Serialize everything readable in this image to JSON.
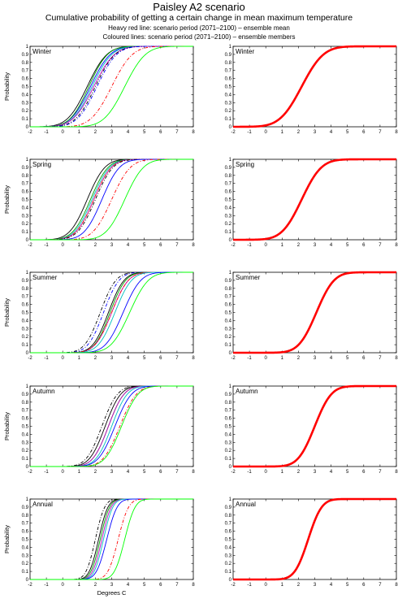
{
  "titles": {
    "main": "Paisley A2 scenario",
    "sub": "Cumulative probability of getting a certain change in mean maximum temperature",
    "legend1": "Heavy red line: scenario period (2071–2100) – ensemble mean",
    "legend2": "Coloured lines: scenario period (2071–2100) – ensemble members"
  },
  "colors": {
    "mean": "#ff0000",
    "axis": "#000000"
  },
  "chart_data": [
    {
      "type": "line",
      "panel": "Winter",
      "column": "members",
      "ylabel": "Probability",
      "xlabel": "",
      "xlim": [
        -2,
        8
      ],
      "ylim": [
        0,
        1
      ],
      "series": [
        {
          "color": "#000000",
          "style": "solid",
          "median": 1.5,
          "spread": 0.95
        },
        {
          "color": "#0000ff",
          "style": "solid",
          "median": 1.7,
          "spread": 0.95
        },
        {
          "color": "#00a000",
          "style": "solid",
          "median": 1.6,
          "spread": 0.9
        },
        {
          "color": "#00c0c0",
          "style": "solid",
          "median": 1.8,
          "spread": 0.95
        },
        {
          "color": "#c000c0",
          "style": "solid",
          "median": 1.9,
          "spread": 1.0
        },
        {
          "color": "#000000",
          "style": "dashdot",
          "median": 2.0,
          "spread": 0.95
        },
        {
          "color": "#0000ff",
          "style": "dashdot",
          "median": 2.1,
          "spread": 0.95
        },
        {
          "color": "#ff0000",
          "style": "dashdot",
          "median": 3.0,
          "spread": 1.0
        },
        {
          "color": "#00ff00",
          "style": "solid",
          "median": 3.8,
          "spread": 1.0
        }
      ]
    },
    {
      "type": "line",
      "panel": "Winter",
      "column": "mean",
      "xlabel": "",
      "xlim": [
        -2,
        8
      ],
      "ylim": [
        0,
        1
      ],
      "series": [
        {
          "color": "#ff0000",
          "style": "heavy",
          "median": 2.2,
          "spread": 1.05
        }
      ]
    },
    {
      "type": "line",
      "panel": "Spring",
      "column": "members",
      "ylabel": "Probability",
      "xlabel": "",
      "xlim": [
        -2,
        8
      ],
      "ylim": [
        0,
        1
      ],
      "series": [
        {
          "color": "#000000",
          "style": "solid",
          "median": 1.5,
          "spread": 0.85
        },
        {
          "color": "#00a000",
          "style": "solid",
          "median": 1.7,
          "spread": 0.85
        },
        {
          "color": "#00c0c0",
          "style": "solid",
          "median": 1.8,
          "spread": 0.85
        },
        {
          "color": "#c000c0",
          "style": "solid",
          "median": 1.9,
          "spread": 0.85
        },
        {
          "color": "#ff0000",
          "style": "dashdot",
          "median": 1.9,
          "spread": 0.85
        },
        {
          "color": "#000000",
          "style": "dashdot",
          "median": 2.0,
          "spread": 0.85
        },
        {
          "color": "#0000ff",
          "style": "solid",
          "median": 2.4,
          "spread": 0.85
        },
        {
          "color": "#ff0000",
          "style": "dashdot",
          "median": 3.0,
          "spread": 0.9
        },
        {
          "color": "#00ff00",
          "style": "solid",
          "median": 3.8,
          "spread": 0.9
        }
      ]
    },
    {
      "type": "line",
      "panel": "Spring",
      "column": "mean",
      "xlabel": "",
      "xlim": [
        -2,
        8
      ],
      "ylim": [
        0,
        1
      ],
      "series": [
        {
          "color": "#ff0000",
          "style": "heavy",
          "median": 2.2,
          "spread": 0.95
        }
      ]
    },
    {
      "type": "line",
      "panel": "Summer",
      "column": "members",
      "ylabel": "Probability",
      "xlabel": "",
      "xlim": [
        -2,
        8
      ],
      "ylim": [
        0,
        1
      ],
      "series": [
        {
          "color": "#000000",
          "style": "dashdot",
          "median": 2.3,
          "spread": 0.75
        },
        {
          "color": "#0000ff",
          "style": "dashdot",
          "median": 2.5,
          "spread": 0.75
        },
        {
          "color": "#000000",
          "style": "solid",
          "median": 2.8,
          "spread": 0.75
        },
        {
          "color": "#00a000",
          "style": "solid",
          "median": 2.9,
          "spread": 0.75
        },
        {
          "color": "#c000c0",
          "style": "solid",
          "median": 3.0,
          "spread": 0.8
        },
        {
          "color": "#ff0000",
          "style": "dashdot",
          "median": 3.0,
          "spread": 0.8
        },
        {
          "color": "#00c0c0",
          "style": "solid",
          "median": 3.2,
          "spread": 0.8
        },
        {
          "color": "#0000ff",
          "style": "solid",
          "median": 3.7,
          "spread": 0.85
        },
        {
          "color": "#00ff00",
          "style": "solid",
          "median": 4.1,
          "spread": 0.9
        }
      ]
    },
    {
      "type": "line",
      "panel": "Summer",
      "column": "mean",
      "xlabel": "",
      "xlim": [
        -2,
        8
      ],
      "ylim": [
        0,
        1
      ],
      "series": [
        {
          "color": "#ff0000",
          "style": "heavy",
          "median": 3.1,
          "spread": 0.85
        }
      ]
    },
    {
      "type": "line",
      "panel": "Autumn",
      "column": "members",
      "ylabel": "Probability",
      "xlabel": "",
      "xlim": [
        -2,
        8
      ],
      "ylim": [
        0,
        1
      ],
      "series": [
        {
          "color": "#000000",
          "style": "dashdot",
          "median": 2.4,
          "spread": 0.75
        },
        {
          "color": "#000000",
          "style": "solid",
          "median": 2.6,
          "spread": 0.75
        },
        {
          "color": "#00a000",
          "style": "solid",
          "median": 2.8,
          "spread": 0.75
        },
        {
          "color": "#c000c0",
          "style": "solid",
          "median": 2.8,
          "spread": 0.75
        },
        {
          "color": "#00c0c0",
          "style": "solid",
          "median": 3.0,
          "spread": 0.75
        },
        {
          "color": "#0000ff",
          "style": "solid",
          "median": 3.2,
          "spread": 0.8
        },
        {
          "color": "#ff0000",
          "style": "dashdot",
          "median": 3.5,
          "spread": 0.8
        },
        {
          "color": "#00ff00",
          "style": "solid",
          "median": 3.6,
          "spread": 0.8
        }
      ]
    },
    {
      "type": "line",
      "panel": "Autumn",
      "column": "mean",
      "xlabel": "",
      "xlim": [
        -2,
        8
      ],
      "ylim": [
        0,
        1
      ],
      "series": [
        {
          "color": "#ff0000",
          "style": "heavy",
          "median": 3.0,
          "spread": 0.8
        }
      ]
    },
    {
      "type": "line",
      "panel": "Annual",
      "column": "members",
      "ylabel": "Probability",
      "xlabel": "Degrees C",
      "xlim": [
        -2,
        8
      ],
      "ylim": [
        0,
        1
      ],
      "series": [
        {
          "color": "#000000",
          "style": "dashdot",
          "median": 2.0,
          "spread": 0.45
        },
        {
          "color": "#000000",
          "style": "solid",
          "median": 2.2,
          "spread": 0.45
        },
        {
          "color": "#00a000",
          "style": "solid",
          "median": 2.3,
          "spread": 0.45
        },
        {
          "color": "#c000c0",
          "style": "solid",
          "median": 2.4,
          "spread": 0.45
        },
        {
          "color": "#00c0c0",
          "style": "solid",
          "median": 2.5,
          "spread": 0.45
        },
        {
          "color": "#0000ff",
          "style": "solid",
          "median": 2.7,
          "spread": 0.5
        },
        {
          "color": "#ff0000",
          "style": "dashdot",
          "median": 3.4,
          "spread": 0.5
        },
        {
          "color": "#00ff00",
          "style": "solid",
          "median": 3.8,
          "spread": 0.5
        }
      ]
    },
    {
      "type": "line",
      "panel": "Annual",
      "column": "mean",
      "xlabel": "Degrees C",
      "xlim": [
        -2,
        8
      ],
      "ylim": [
        0,
        1
      ],
      "series": [
        {
          "color": "#ff0000",
          "style": "heavy",
          "median": 2.6,
          "spread": 0.65
        }
      ]
    }
  ],
  "axes": {
    "xticks": [
      "-2",
      "-1",
      "0",
      "1",
      "2",
      "3",
      "4",
      "5",
      "6",
      "7",
      "8"
    ],
    "yticks": [
      "0",
      "0.1",
      "0.2",
      "0.3",
      "0.4",
      "0.5",
      "0.6",
      "0.7",
      "0.8",
      "0.9",
      "1"
    ],
    "ylabel": "Probability",
    "xlabel": "Degrees C"
  }
}
